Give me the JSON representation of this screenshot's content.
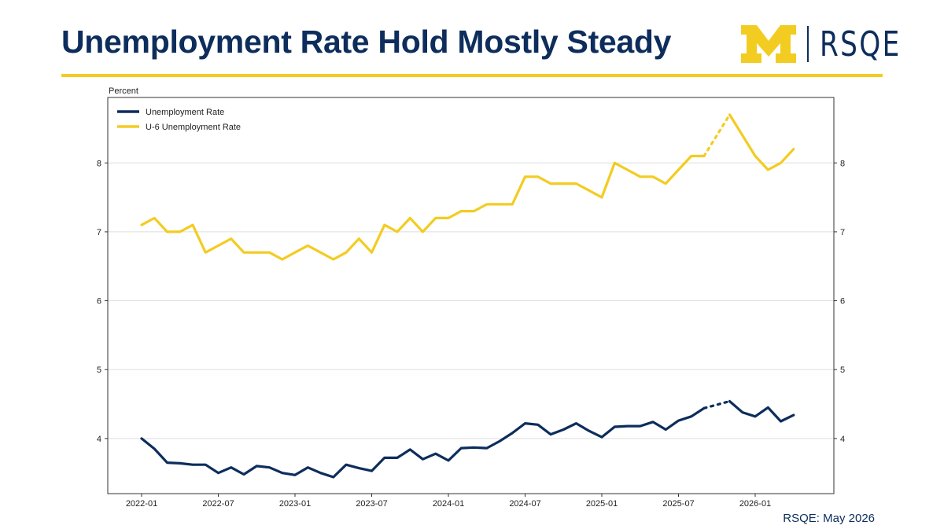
{
  "header": {
    "title": "Unemployment Rate Hold Mostly Steady",
    "logo_text": "RSQE"
  },
  "footer": {
    "source": "RSQE: May 2026"
  },
  "colors": {
    "navy": "#0d2d5c",
    "maize": "#f3cc21",
    "grid": "#dddddd"
  },
  "icons": {
    "logo_mark": "block-m-logo-icon"
  },
  "chart_data": {
    "type": "line",
    "ylabel": "Percent",
    "ylim": [
      3.2,
      8.95
    ],
    "yticks": [
      4,
      5,
      6,
      7,
      8
    ],
    "xticks": [
      "2022-01",
      "2022-07",
      "2023-01",
      "2023-07",
      "2024-01",
      "2024-07",
      "2025-01",
      "2025-07",
      "2026-01"
    ],
    "x": [
      "2022-01",
      "2022-02",
      "2022-03",
      "2022-04",
      "2022-05",
      "2022-06",
      "2022-07",
      "2022-08",
      "2022-09",
      "2022-10",
      "2022-11",
      "2022-12",
      "2023-01",
      "2023-02",
      "2023-03",
      "2023-04",
      "2023-05",
      "2023-06",
      "2023-07",
      "2023-08",
      "2023-09",
      "2023-10",
      "2023-11",
      "2023-12",
      "2024-01",
      "2024-02",
      "2024-03",
      "2024-04",
      "2024-05",
      "2024-06",
      "2024-07",
      "2024-08",
      "2024-09",
      "2024-10",
      "2024-11",
      "2024-12",
      "2025-01",
      "2025-02",
      "2025-03",
      "2025-04",
      "2025-05",
      "2025-06",
      "2025-07",
      "2025-08",
      "2025-09",
      "2025-10",
      "2025-11",
      "2025-12",
      "2026-01",
      "2026-02",
      "2026-03",
      "2026-04"
    ],
    "grid": "horizontal",
    "legend_position": "top-left",
    "dashed_segment": [
      "2025-09",
      "2025-11"
    ],
    "series": [
      {
        "name": "Unemployment Rate",
        "color": "#0d2d5c",
        "values": [
          4.0,
          3.85,
          3.65,
          3.64,
          3.62,
          3.62,
          3.5,
          3.58,
          3.48,
          3.6,
          3.58,
          3.5,
          3.47,
          3.58,
          3.5,
          3.44,
          3.62,
          3.57,
          3.53,
          3.72,
          3.72,
          3.84,
          3.7,
          3.78,
          3.68,
          3.86,
          3.87,
          3.86,
          3.96,
          4.08,
          4.22,
          4.2,
          4.06,
          4.13,
          4.22,
          4.11,
          4.02,
          4.17,
          4.18,
          4.18,
          4.24,
          4.13,
          4.26,
          4.32,
          4.44,
          4.49,
          4.54,
          4.38,
          4.32,
          4.45,
          4.25,
          4.34
        ]
      },
      {
        "name": "U-6 Unemployment Rate",
        "color": "#f3cc21",
        "values": [
          7.1,
          7.2,
          7.0,
          7.0,
          7.1,
          6.7,
          6.8,
          6.9,
          6.7,
          6.7,
          6.7,
          6.6,
          6.7,
          6.8,
          6.7,
          6.6,
          6.7,
          6.9,
          6.7,
          7.1,
          7.0,
          7.2,
          7.0,
          7.2,
          7.2,
          7.3,
          7.3,
          7.4,
          7.4,
          7.4,
          7.8,
          7.8,
          7.7,
          7.7,
          7.7,
          7.6,
          7.5,
          8.0,
          7.9,
          7.8,
          7.8,
          7.7,
          7.9,
          8.1,
          8.1,
          8.4,
          8.7,
          8.4,
          8.1,
          7.9,
          8.0,
          8.2
        ]
      }
    ]
  }
}
